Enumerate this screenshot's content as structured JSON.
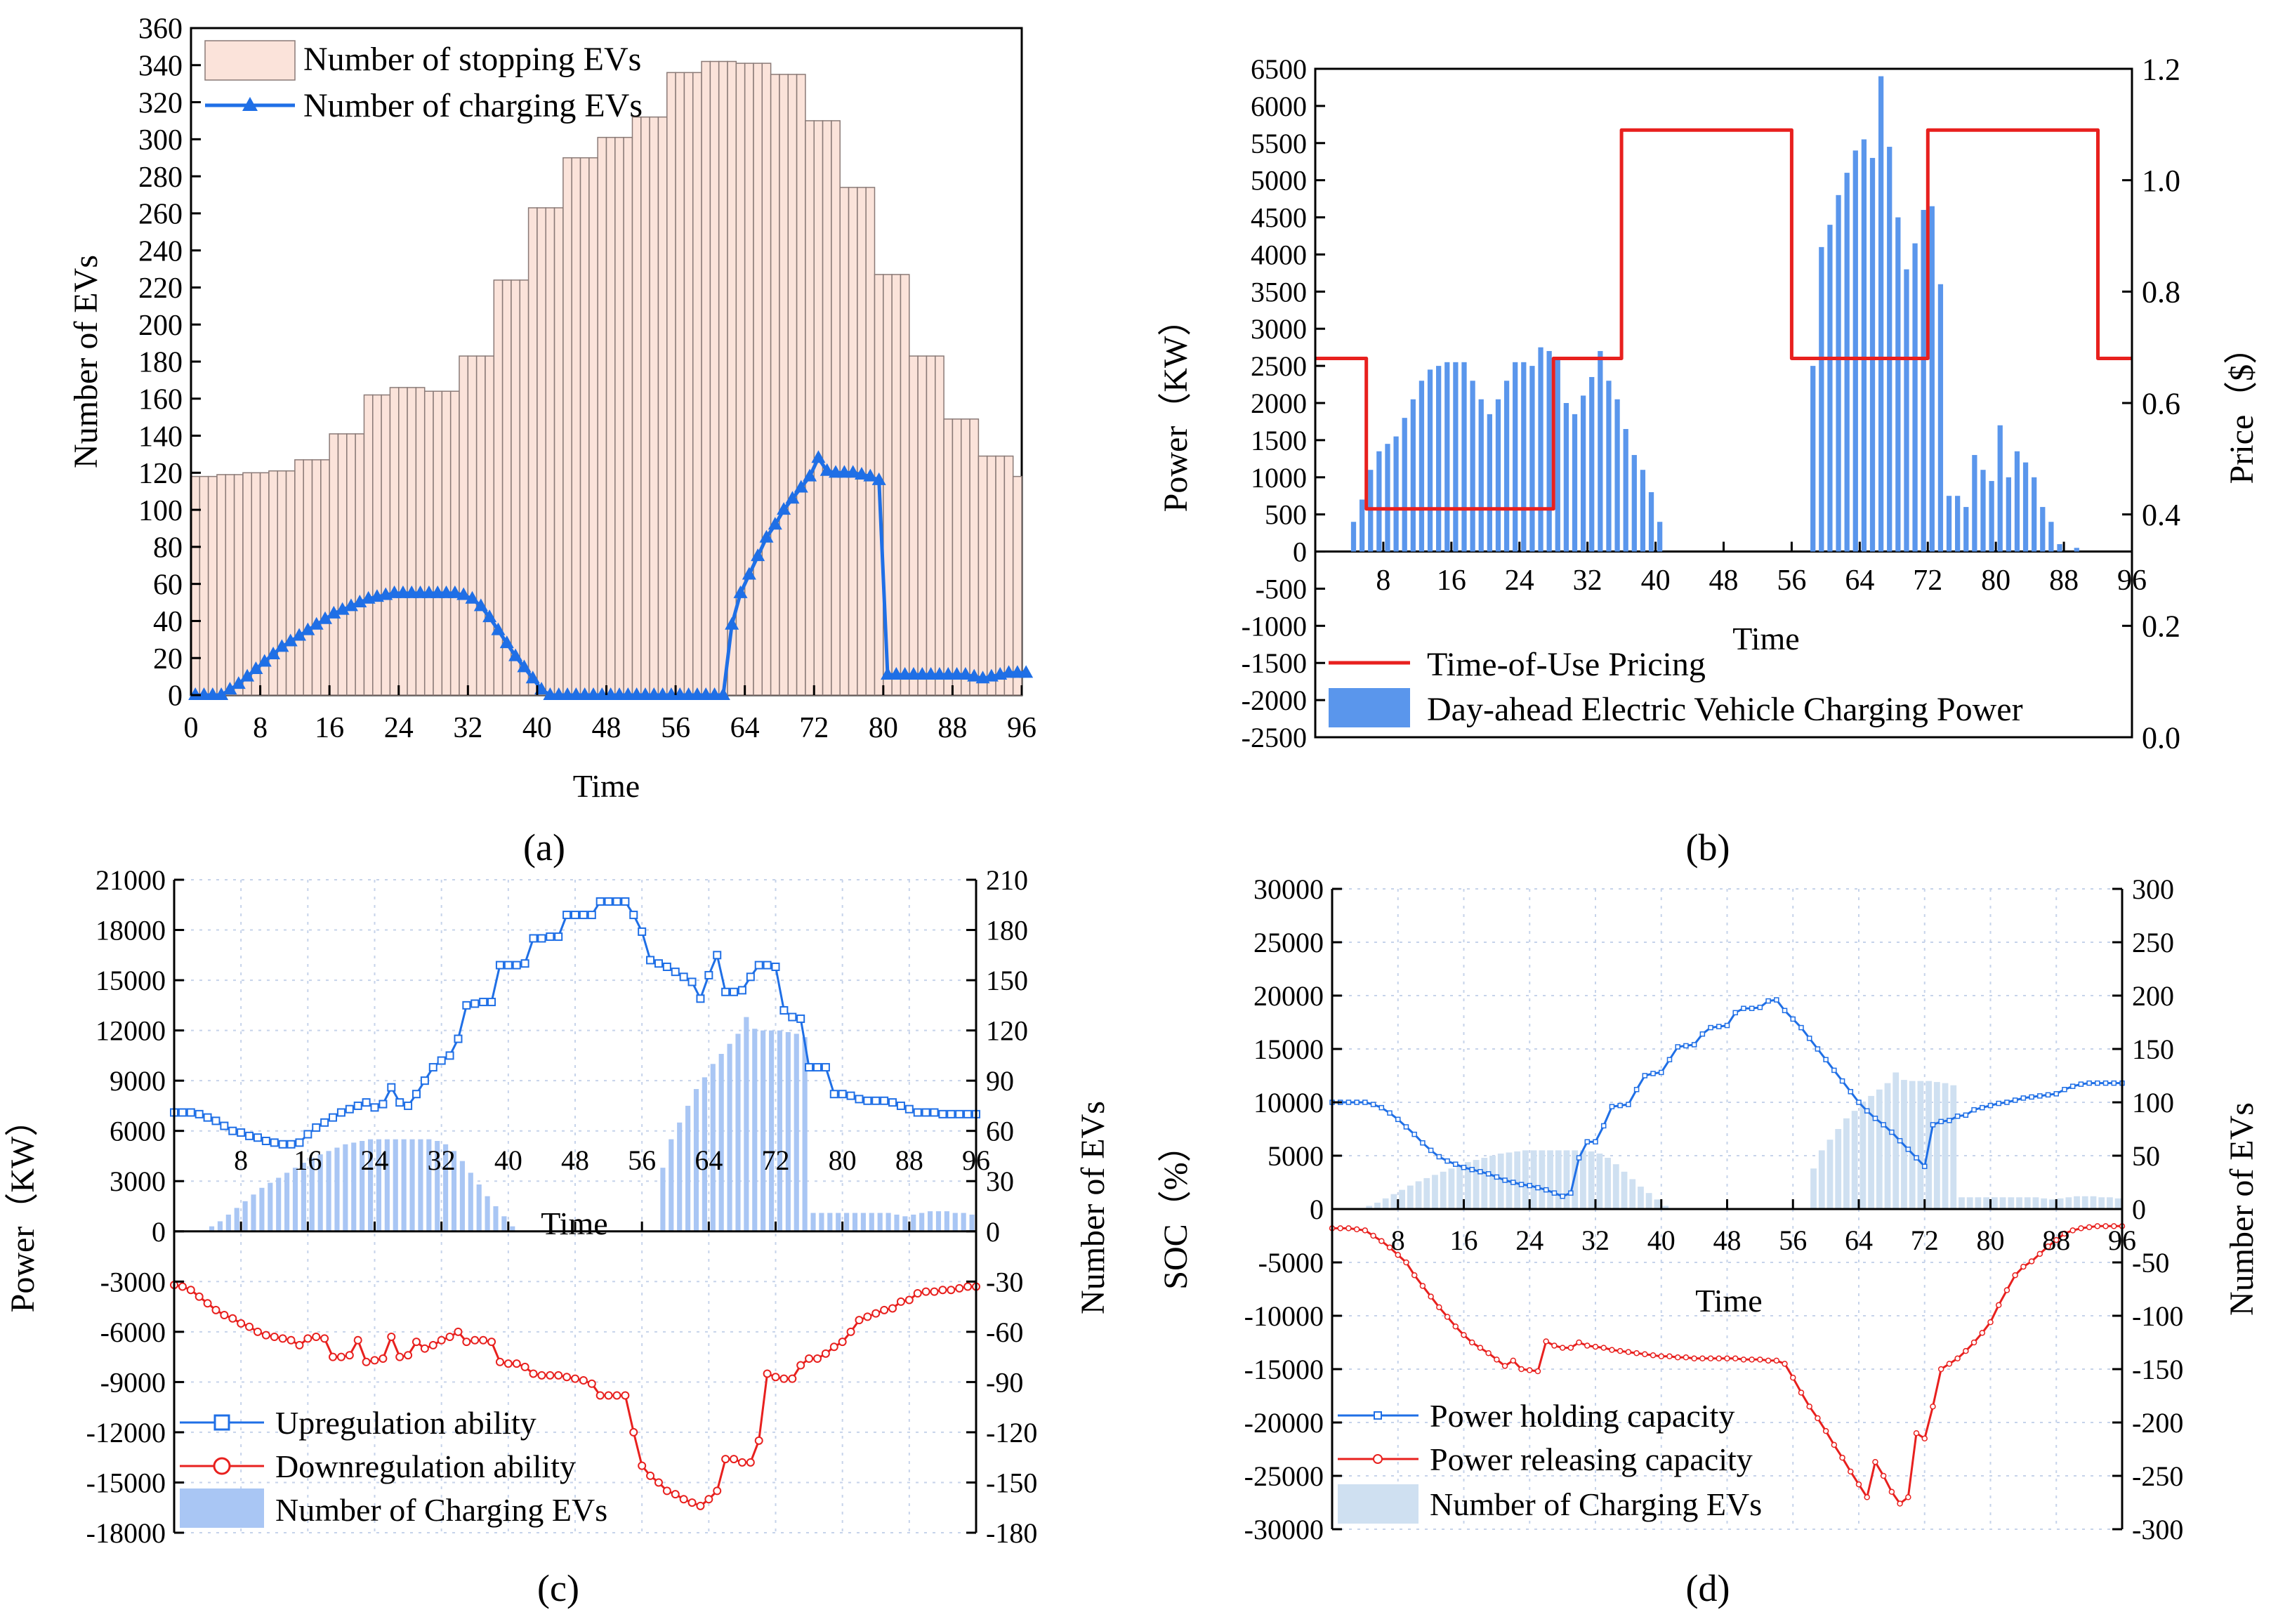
{
  "colors": {
    "stopping_fill": "#fbe3da",
    "stopping_stroke": "#8a7a77",
    "blue": "#1f6fe6",
    "bar_blue": "#5a96ec",
    "bar_lightblue": "#a9c6f4",
    "bar_paleblue": "#cfe0f1",
    "red": "#e8201e",
    "grid": "#c6d3ea"
  },
  "chart_data": [
    {
      "id": "a",
      "panel_label": "(a)",
      "type": "bar+line",
      "xlabel": "Time",
      "ylabel": "Number of EVs",
      "xlim": [
        0,
        96
      ],
      "ylim": [
        0,
        360
      ],
      "xticks": [
        0,
        8,
        16,
        24,
        32,
        40,
        48,
        56,
        64,
        72,
        80,
        88,
        96
      ],
      "yticks": [
        0,
        20,
        40,
        60,
        80,
        100,
        120,
        140,
        160,
        180,
        200,
        220,
        240,
        260,
        280,
        300,
        320,
        340,
        360
      ],
      "legend": [
        "Number of stopping EVs",
        "Number of charging EVs"
      ],
      "stopping_EVs": [
        118,
        118,
        118,
        119,
        119,
        119,
        120,
        120,
        120,
        121,
        121,
        121,
        127,
        127,
        127,
        127,
        141,
        141,
        141,
        141,
        162,
        162,
        162,
        166,
        166,
        166,
        166,
        164,
        164,
        164,
        164,
        183,
        183,
        183,
        183,
        224,
        224,
        224,
        224,
        263,
        263,
        263,
        263,
        290,
        290,
        290,
        290,
        301,
        301,
        301,
        301,
        312,
        312,
        312,
        312,
        336,
        336,
        336,
        336,
        342,
        342,
        342,
        342,
        341,
        341,
        341,
        341,
        335,
        335,
        335,
        335,
        310,
        310,
        310,
        310,
        274,
        274,
        274,
        274,
        227,
        227,
        227,
        227,
        183,
        183,
        183,
        183,
        149,
        149,
        149,
        149,
        129,
        129,
        129,
        129,
        118
      ],
      "charging_EVs": [
        0,
        0,
        0,
        0,
        3,
        6,
        10,
        14,
        18,
        22,
        26,
        29,
        32,
        35,
        38,
        41,
        44,
        46,
        48,
        50,
        52,
        53,
        54,
        55,
        55,
        55,
        55,
        55,
        55,
        55,
        55,
        54,
        52,
        48,
        42,
        35,
        28,
        21,
        15,
        9,
        3,
        0,
        0,
        0,
        0,
        0,
        0,
        0,
        0,
        0,
        0,
        0,
        0,
        0,
        0,
        0,
        0,
        0,
        0,
        0,
        0,
        0,
        38,
        55,
        65,
        75,
        85,
        92,
        100,
        106,
        112,
        118,
        128,
        121,
        120,
        120,
        120,
        119,
        118,
        116,
        11,
        11,
        11,
        11,
        11,
        11,
        11,
        11,
        11,
        11,
        10,
        9,
        10,
        11,
        12,
        12,
        12
      ]
    },
    {
      "id": "b",
      "panel_label": "(b)",
      "type": "bar+step",
      "xlabel": "Time",
      "ylabel_left": "Power（KW）",
      "ylabel_right": "Price（$）",
      "xlim": [
        0,
        96
      ],
      "ylim_left": [
        -2500,
        6500
      ],
      "ylim_right": [
        0,
        1.2
      ],
      "xticks": [
        8,
        16,
        24,
        32,
        40,
        48,
        56,
        64,
        72,
        80,
        88,
        96
      ],
      "yticks_left": [
        -2500,
        -2000,
        -1500,
        -1000,
        -500,
        0,
        500,
        1000,
        1500,
        2000,
        2500,
        3000,
        3500,
        4000,
        4500,
        5000,
        5500,
        6000,
        6500
      ],
      "yticks_right": [
        "0.0",
        "0.2",
        "0.4",
        "0.6",
        "0.8",
        "1.0",
        "1.2"
      ],
      "legend": [
        "Time-of-Use Pricing",
        "Day-ahead Electric Vehicle Charging Power"
      ],
      "charging_power": [
        0,
        0,
        0,
        0,
        400,
        700,
        1100,
        1350,
        1450,
        1550,
        1800,
        2050,
        2300,
        2450,
        2500,
        2550,
        2550,
        2550,
        2300,
        2050,
        1850,
        2050,
        2300,
        2550,
        2550,
        2500,
        2750,
        2700,
        2600,
        2000,
        1850,
        2100,
        2350,
        2700,
        2300,
        2050,
        1650,
        1300,
        1100,
        800,
        400,
        0,
        0,
        0,
        0,
        0,
        0,
        0,
        0,
        0,
        0,
        0,
        0,
        0,
        0,
        0,
        0,
        0,
        2500,
        4100,
        4400,
        4800,
        5100,
        5400,
        5550,
        5300,
        6400,
        5450,
        4500,
        3800,
        4150,
        4600,
        4650,
        3600,
        750,
        750,
        600,
        1300,
        1100,
        950,
        1700,
        1000,
        1350,
        1200,
        1000,
        600,
        400,
        100,
        0,
        50,
        0,
        0,
        0,
        0,
        0,
        0
      ],
      "tou_price": [
        0.68,
        0.68,
        0.68,
        0.68,
        0.68,
        0.68,
        0.41,
        0.41,
        0.41,
        0.41,
        0.41,
        0.41,
        0.41,
        0.41,
        0.41,
        0.41,
        0.41,
        0.41,
        0.41,
        0.41,
        0.41,
        0.41,
        0.41,
        0.41,
        0.41,
        0.41,
        0.41,
        0.41,
        0.68,
        0.68,
        0.68,
        0.68,
        0.68,
        0.68,
        0.68,
        0.68,
        1.09,
        1.09,
        1.09,
        1.09,
        1.09,
        1.09,
        1.09,
        1.09,
        1.09,
        1.09,
        1.09,
        1.09,
        1.09,
        1.09,
        1.09,
        1.09,
        1.09,
        1.09,
        1.09,
        1.09,
        0.68,
        0.68,
        0.68,
        0.68,
        0.68,
        0.68,
        0.68,
        0.68,
        0.68,
        0.68,
        0.68,
        0.68,
        0.68,
        0.68,
        0.68,
        0.68,
        1.09,
        1.09,
        1.09,
        1.09,
        1.09,
        1.09,
        1.09,
        1.09,
        1.09,
        1.09,
        1.09,
        1.09,
        1.09,
        1.09,
        1.09,
        1.09,
        1.09,
        1.09,
        1.09,
        1.09,
        0.68,
        0.68,
        0.68,
        0.68
      ]
    },
    {
      "id": "c",
      "panel_label": "(c)",
      "type": "line+bar",
      "xlabel": "Time",
      "ylabel_left": "Power（KW）",
      "ylabel_right": "Number of EVs",
      "xlim": [
        0,
        96
      ],
      "ylim_left": [
        -18000,
        21000
      ],
      "ylim_right": [
        -180,
        210
      ],
      "xticks": [
        8,
        16,
        24,
        32,
        40,
        48,
        56,
        64,
        72,
        80,
        88,
        96
      ],
      "yticks_left": [
        -18000,
        -15000,
        -12000,
        -9000,
        -6000,
        -3000,
        0,
        3000,
        6000,
        9000,
        12000,
        15000,
        18000,
        21000
      ],
      "yticks_right": [
        -180,
        -150,
        -120,
        -90,
        -60,
        -30,
        0,
        30,
        60,
        90,
        120,
        150,
        180,
        210
      ],
      "legend": [
        "Upregulation ability",
        "Downregulation ability",
        "Number of Charging EVs"
      ],
      "upregulation": [
        7100,
        7100,
        7100,
        7000,
        6800,
        6600,
        6300,
        6000,
        5900,
        5700,
        5600,
        5400,
        5300,
        5200,
        5200,
        5300,
        5800,
        6200,
        6500,
        6800,
        7100,
        7300,
        7500,
        7700,
        7400,
        7600,
        8600,
        7700,
        7500,
        8200,
        9000,
        9800,
        10200,
        10500,
        11500,
        13500,
        13600,
        13700,
        13700,
        15900,
        15900,
        15900,
        16000,
        17500,
        17500,
        17600,
        17600,
        18900,
        18900,
        18900,
        18900,
        19700,
        19700,
        19700,
        19700,
        18900,
        17900,
        16200,
        16000,
        15800,
        15500,
        15200,
        14900,
        13900,
        15300,
        16500,
        14300,
        14300,
        14400,
        15200,
        15900,
        15900,
        15800,
        13200,
        12800,
        12700,
        9800,
        9800,
        9800,
        8200,
        8200,
        8100,
        7900,
        7800,
        7800,
        7800,
        7700,
        7500,
        7300,
        7100,
        7100,
        7100,
        7000,
        7000,
        7000,
        7000,
        7000
      ],
      "downregulation": [
        -3200,
        -3300,
        -3500,
        -3900,
        -4300,
        -4700,
        -5000,
        -5200,
        -5500,
        -5700,
        -6000,
        -6200,
        -6300,
        -6400,
        -6500,
        -6800,
        -6400,
        -6300,
        -6400,
        -7500,
        -7500,
        -7400,
        -6500,
        -7800,
        -7700,
        -7600,
        -6300,
        -7500,
        -7400,
        -6600,
        -7000,
        -6800,
        -6500,
        -6300,
        -6000,
        -6600,
        -6500,
        -6500,
        -6600,
        -7800,
        -7900,
        -7900,
        -8100,
        -8500,
        -8600,
        -8600,
        -8600,
        -8700,
        -8800,
        -8900,
        -9100,
        -9800,
        -9800,
        -9800,
        -9800,
        -12000,
        -14000,
        -14600,
        -15000,
        -15500,
        -15700,
        -16000,
        -16200,
        -16400,
        -16000,
        -15500,
        -13600,
        -13600,
        -13800,
        -13800,
        -12500,
        -8500,
        -8700,
        -8800,
        -8800,
        -8000,
        -7600,
        -7600,
        -7300,
        -6900,
        -6600,
        -6000,
        -5300,
        -5100,
        -4900,
        -4700,
        -4600,
        -4200,
        -4100,
        -3700,
        -3600,
        -3600,
        -3500,
        -3500,
        -3400,
        -3300,
        -3300
      ],
      "charging_EVs": [
        0,
        0,
        0,
        0,
        3,
        6,
        10,
        14,
        18,
        22,
        26,
        29,
        32,
        35,
        38,
        41,
        44,
        46,
        48,
        50,
        52,
        53,
        54,
        55,
        55,
        55,
        55,
        55,
        55,
        55,
        55,
        54,
        52,
        48,
        42,
        35,
        28,
        21,
        15,
        9,
        3,
        0,
        0,
        0,
        0,
        0,
        0,
        0,
        0,
        0,
        0,
        0,
        0,
        0,
        0,
        0,
        0,
        0,
        38,
        55,
        65,
        75,
        85,
        92,
        100,
        106,
        112,
        118,
        128,
        121,
        120,
        120,
        120,
        119,
        118,
        116,
        11,
        11,
        11,
        11,
        11,
        11,
        11,
        11,
        11,
        11,
        10,
        9,
        10,
        11,
        12,
        12,
        12,
        11,
        11,
        10,
        0,
        0
      ]
    },
    {
      "id": "d",
      "panel_label": "(d)",
      "type": "line+bar",
      "xlabel": "Time",
      "ylabel_left": "SOC（%）",
      "ylabel_right": "Number of EVs",
      "xlim": [
        0,
        96
      ],
      "ylim_left": [
        -30000,
        30000
      ],
      "ylim_right": [
        -300,
        300
      ],
      "xticks": [
        8,
        16,
        24,
        32,
        40,
        48,
        56,
        64,
        72,
        80,
        88,
        96
      ],
      "yticks_left": [
        -30000,
        -25000,
        -20000,
        -15000,
        -10000,
        -5000,
        0,
        5000,
        10000,
        15000,
        20000,
        25000,
        30000
      ],
      "yticks_right": [
        -300,
        -250,
        -200,
        -150,
        -100,
        -50,
        0,
        50,
        100,
        150,
        200,
        250,
        300
      ],
      "legend": [
        "Power holding capacity",
        "Power releasing capacity",
        "Number of Charging EVs"
      ],
      "holding": [
        10000,
        10000,
        10000,
        10000,
        10000,
        9800,
        9500,
        9000,
        8400,
        7700,
        7000,
        6200,
        5500,
        4900,
        4500,
        4200,
        3900,
        3700,
        3500,
        3300,
        3000,
        2700,
        2500,
        2300,
        2200,
        2000,
        1800,
        1500,
        1200,
        1500,
        4800,
        6300,
        6300,
        7800,
        9600,
        9700,
        9800,
        11200,
        12500,
        12700,
        12800,
        14000,
        15200,
        15300,
        15400,
        16400,
        17000,
        17100,
        17200,
        18400,
        18800,
        18800,
        18900,
        19500,
        19600,
        18600,
        17800,
        17000,
        16000,
        15000,
        14000,
        13000,
        12000,
        11000,
        10000,
        9200,
        8500,
        7900,
        7200,
        6400,
        5600,
        4800,
        4000,
        7900,
        8200,
        8300,
        8700,
        8800,
        9300,
        9500,
        9700,
        9900,
        10000,
        10200,
        10400,
        10500,
        10600,
        10700,
        10800,
        11200,
        11500,
        11700,
        11800,
        11800,
        11800,
        11800,
        11800
      ],
      "releasing": [
        -1800,
        -1800,
        -1800,
        -1900,
        -2000,
        -2500,
        -3000,
        -3600,
        -4300,
        -5000,
        -6200,
        -7200,
        -8200,
        -9200,
        -10100,
        -11000,
        -11800,
        -12500,
        -13000,
        -13500,
        -14100,
        -14700,
        -14200,
        -15000,
        -15100,
        -15200,
        -12400,
        -12800,
        -13000,
        -13000,
        -12500,
        -12800,
        -12900,
        -13000,
        -13200,
        -13300,
        -13400,
        -13500,
        -13600,
        -13700,
        -13800,
        -13800,
        -13900,
        -13900,
        -14000,
        -14000,
        -14000,
        -14000,
        -14000,
        -14000,
        -14100,
        -14100,
        -14100,
        -14200,
        -14200,
        -14500,
        -15800,
        -17200,
        -18500,
        -19600,
        -20800,
        -22100,
        -23300,
        -24600,
        -25800,
        -27000,
        -23700,
        -25000,
        -26500,
        -27600,
        -27000,
        -21000,
        -21500,
        -18500,
        -15000,
        -14500,
        -14000,
        -13300,
        -12500,
        -11600,
        -10600,
        -9000,
        -7600,
        -6200,
        -5400,
        -4900,
        -4200,
        -3500,
        -2900,
        -2300,
        -2000,
        -1800,
        -1700,
        -1600,
        -1600,
        -1600,
        -1600
      ],
      "charging_EVs": [
        0,
        0,
        0,
        0,
        3,
        6,
        10,
        14,
        18,
        22,
        26,
        29,
        32,
        35,
        38,
        41,
        44,
        46,
        48,
        50,
        52,
        53,
        54,
        55,
        55,
        55,
        55,
        55,
        55,
        55,
        55,
        54,
        52,
        48,
        42,
        35,
        28,
        21,
        15,
        9,
        3,
        0,
        0,
        0,
        0,
        0,
        0,
        0,
        0,
        0,
        0,
        0,
        0,
        0,
        0,
        0,
        0,
        0,
        38,
        55,
        65,
        75,
        85,
        92,
        100,
        106,
        112,
        118,
        128,
        121,
        120,
        120,
        120,
        119,
        118,
        116,
        11,
        11,
        11,
        11,
        11,
        11,
        11,
        11,
        11,
        11,
        10,
        9,
        10,
        11,
        12,
        12,
        12,
        11,
        11,
        10,
        0,
        0
      ]
    }
  ]
}
